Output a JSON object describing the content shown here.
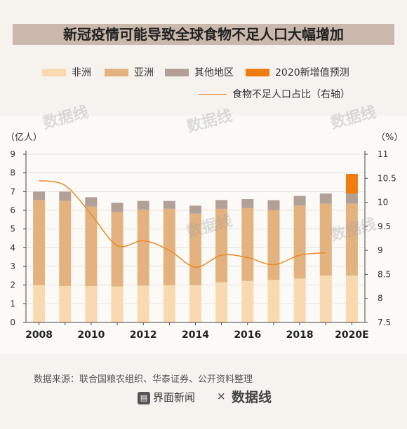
{
  "title": "新冠疫情可能导致全球食物不足人口大幅增加",
  "legend": {
    "africa": "非洲",
    "asia": "亚洲",
    "other": "其他地区",
    "increase": "2020新增值预测",
    "ratio": "食物不足人口占比（右轴）"
  },
  "source": "数据来源：联合国粮农组织、华泰证券、公开资料整理",
  "brand": {
    "left": "界面新闻",
    "sep": "×",
    "right": "数据线"
  },
  "colors": {
    "africa": "#f9d9b0",
    "asia": "#e3b27f",
    "other": "#b2a097",
    "increase": "#f07c10",
    "line": "#e88a2a"
  },
  "chart_data": {
    "type": "bar",
    "categories": [
      "2008",
      "2009",
      "2010",
      "2011",
      "2012",
      "2013",
      "2014",
      "2015",
      "2016",
      "2017",
      "2018",
      "2019",
      "2020E"
    ],
    "x_tick_labels": [
      "2008",
      "2010",
      "2012",
      "2014",
      "2016",
      "2018",
      "2020E"
    ],
    "left_unit": "（亿人）",
    "right_unit": "（%）",
    "left_ticks": [
      "0",
      "1",
      "2",
      "3",
      "4",
      "5",
      "6",
      "7",
      "8",
      "9"
    ],
    "right_ticks": [
      "7.5",
      "8",
      "8.5",
      "9",
      "9.5",
      "10",
      "10.5",
      "11"
    ],
    "ylim": [
      0,
      9
    ],
    "y2lim": [
      7.5,
      11
    ],
    "series": [
      {
        "name": "非洲",
        "values": [
          2.0,
          1.95,
          1.95,
          1.93,
          1.97,
          2.0,
          2.0,
          2.15,
          2.22,
          2.28,
          2.35,
          2.5,
          2.5
        ]
      },
      {
        "name": "亚洲",
        "values": [
          4.55,
          4.55,
          4.25,
          3.98,
          4.06,
          4.08,
          3.82,
          3.93,
          3.9,
          3.74,
          3.9,
          3.85,
          3.85
        ]
      },
      {
        "name": "其他地区",
        "values": [
          0.45,
          0.5,
          0.5,
          0.49,
          0.47,
          0.42,
          0.43,
          0.47,
          0.48,
          0.52,
          0.52,
          0.55,
          0.55
        ]
      },
      {
        "name": "2020新增值预测",
        "values": [
          0,
          0,
          0,
          0,
          0,
          0,
          0,
          0,
          0,
          0,
          0,
          0,
          1.05
        ]
      }
    ],
    "line": {
      "name": "食物不足人口占比（右轴）",
      "values": [
        10.45,
        10.35,
        9.75,
        9.1,
        9.2,
        9.0,
        8.65,
        8.9,
        8.85,
        8.7,
        8.9,
        8.95,
        null
      ]
    }
  }
}
